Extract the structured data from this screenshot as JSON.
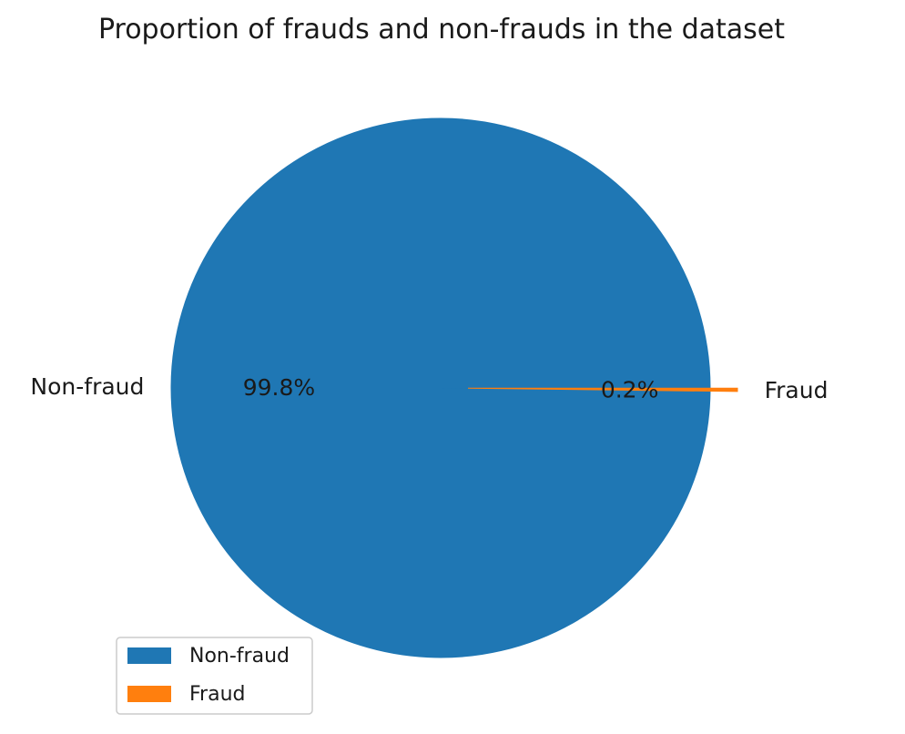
{
  "chart_data": {
    "type": "pie",
    "title": "Proportion of frauds and non-frauds in the dataset",
    "slices": [
      {
        "label": "Non-fraud",
        "value": 99.8,
        "pct_label": "99.8%",
        "color": "#1f77b4"
      },
      {
        "label": "Fraud",
        "value": 0.2,
        "pct_label": "0.2%",
        "color": "#ff7f0e",
        "explode": true
      }
    ],
    "legend": {
      "placement": "lower-left",
      "entries": [
        "Non-fraud",
        "Fraud"
      ]
    }
  }
}
